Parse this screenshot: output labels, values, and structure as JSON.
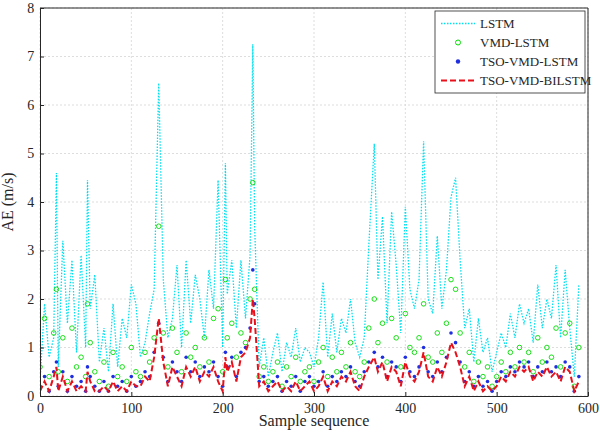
{
  "chart_data": {
    "type": "line",
    "x_label": "Sample sequence",
    "y_label": "AE (m/s)",
    "x": [
      0,
      5,
      10,
      15,
      18,
      20,
      25,
      30,
      35,
      40,
      45,
      50,
      52,
      55,
      60,
      65,
      70,
      75,
      80,
      85,
      90,
      95,
      100,
      105,
      110,
      115,
      120,
      125,
      130,
      135,
      140,
      145,
      150,
      155,
      160,
      165,
      170,
      175,
      180,
      185,
      190,
      195,
      200,
      203,
      205,
      210,
      215,
      220,
      225,
      230,
      233,
      235,
      240,
      245,
      250,
      255,
      260,
      265,
      270,
      275,
      280,
      285,
      290,
      295,
      300,
      305,
      310,
      315,
      320,
      325,
      330,
      335,
      340,
      345,
      350,
      355,
      360,
      366,
      370,
      375,
      380,
      385,
      390,
      395,
      400,
      405,
      410,
      415,
      420,
      425,
      430,
      435,
      440,
      445,
      450,
      455,
      460,
      465,
      470,
      475,
      480,
      485,
      490,
      495,
      500,
      505,
      510,
      515,
      520,
      525,
      530,
      535,
      540,
      545,
      550,
      555,
      560,
      565,
      570,
      575,
      580,
      585,
      590
    ],
    "xlim": [
      0,
      600
    ],
    "xticks": [
      0,
      100,
      200,
      300,
      400,
      500,
      600
    ],
    "ylim": [
      0,
      8
    ],
    "yticks": [
      0,
      1,
      2,
      3,
      4,
      5,
      6,
      7,
      8
    ],
    "grid": true,
    "legend": "upper right",
    "series": [
      {
        "name": "LSTM",
        "color": "#00e0f0",
        "type": "line",
        "line_style": "dotted",
        "values": [
          0.3,
          1.9,
          0.8,
          1.2,
          4.6,
          0.6,
          3.2,
          1.5,
          2.8,
          0.9,
          2.9,
          1.0,
          4.45,
          1.8,
          2.5,
          0.7,
          1.4,
          0.5,
          1.9,
          0.6,
          1.6,
          1.2,
          2.3,
          1.9,
          0.8,
          1.1,
          1.7,
          2.2,
          6.45,
          2.4,
          1.2,
          1.6,
          2.7,
          1.0,
          2.8,
          1.5,
          2.5,
          2.0,
          1.2,
          2.6,
          1.8,
          4.45,
          1.0,
          4.8,
          2.1,
          2.8,
          1.4,
          2.8,
          1.6,
          2.9,
          7.25,
          3.5,
          0.6,
          1.2,
          0.4,
          0.9,
          1.3,
          0.5,
          1.1,
          0.8,
          1.4,
          0.7,
          1.0,
          0.9,
          0.6,
          1.2,
          2.35,
          0.8,
          1.7,
          0.9,
          1.6,
          1.3,
          2.0,
          1.1,
          0.8,
          1.2,
          3.1,
          5.2,
          2.4,
          3.7,
          1.5,
          3.8,
          2.7,
          1.3,
          3.9,
          2.2,
          1.8,
          2.4,
          5.25,
          2.0,
          1.7,
          3.3,
          1.8,
          2.6,
          4.1,
          4.5,
          2.8,
          1.4,
          1.8,
          0.7,
          1.6,
          0.9,
          1.2,
          0.5,
          0.9,
          1.3,
          1.0,
          1.7,
          1.2,
          1.9,
          1.5,
          1.8,
          1.1,
          2.3,
          1.4,
          2.0,
          1.6,
          2.7,
          1.2,
          2.6,
          1.4,
          0.4,
          2.3
        ]
      },
      {
        "name": "VMD-LSTM",
        "color": "#00dd00",
        "type": "scatter",
        "marker": "circle",
        "values": [
          0.6,
          1.6,
          0.4,
          1.3,
          2.2,
          0.5,
          1.2,
          0.3,
          1.4,
          0.6,
          0.8,
          0.4,
          1.9,
          1.1,
          0.5,
          0.3,
          0.7,
          0.2,
          0.9,
          0.4,
          0.6,
          0.3,
          1.0,
          0.5,
          0.4,
          0.9,
          0.7,
          1.2,
          3.5,
          1.3,
          0.6,
          1.4,
          0.9,
          0.5,
          1.3,
          0.8,
          1.0,
          0.6,
          1.2,
          0.7,
          1.6,
          1.8,
          0.5,
          2.4,
          1.2,
          1.5,
          0.8,
          1.3,
          1.1,
          2.0,
          4.4,
          2.2,
          0.4,
          0.6,
          0.3,
          0.5,
          0.7,
          0.2,
          0.6,
          0.4,
          0.8,
          0.3,
          0.5,
          0.6,
          0.3,
          0.7,
          1.0,
          0.4,
          0.8,
          0.5,
          0.9,
          0.6,
          1.1,
          0.5,
          0.4,
          0.7,
          1.4,
          2.0,
          1.1,
          1.5,
          0.7,
          1.6,
          1.2,
          0.6,
          1.7,
          1.0,
          0.9,
          1.2,
          1.9,
          0.8,
          0.7,
          1.3,
          0.9,
          1.5,
          2.4,
          2.2,
          1.3,
          0.6,
          0.9,
          0.3,
          0.7,
          0.4,
          0.6,
          0.2,
          0.4,
          0.7,
          0.5,
          0.9,
          0.6,
          1.0,
          0.7,
          0.9,
          0.5,
          1.2,
          0.7,
          1.0,
          0.8,
          1.4,
          0.6,
          1.3,
          1.5,
          0.2,
          1.0
        ]
      },
      {
        "name": "TSO-VMD-LSTM",
        "color": "#1f2fe0",
        "type": "scatter",
        "marker": "point",
        "values": [
          0.2,
          0.4,
          0.1,
          0.5,
          0.7,
          0.2,
          0.5,
          0.1,
          0.4,
          0.2,
          0.3,
          0.1,
          0.6,
          0.4,
          0.2,
          0.1,
          0.3,
          0.1,
          0.4,
          0.2,
          0.3,
          0.1,
          0.4,
          0.2,
          0.3,
          0.5,
          0.4,
          0.9,
          1.5,
          0.8,
          0.3,
          0.7,
          0.5,
          0.3,
          0.8,
          0.5,
          0.7,
          0.4,
          0.6,
          0.5,
          0.7,
          0.4,
          0.2,
          0.9,
          0.6,
          0.8,
          0.4,
          0.9,
          1.0,
          1.4,
          2.6,
          1.9,
          0.3,
          0.4,
          0.2,
          0.3,
          0.4,
          0.1,
          0.3,
          0.2,
          0.4,
          0.1,
          0.3,
          0.4,
          0.2,
          0.3,
          0.5,
          0.2,
          0.4,
          0.3,
          0.5,
          0.4,
          0.6,
          0.3,
          0.2,
          0.5,
          0.7,
          0.9,
          0.6,
          0.8,
          0.4,
          0.7,
          0.6,
          0.3,
          0.8,
          0.5,
          0.4,
          0.6,
          1.0,
          0.5,
          0.4,
          0.7,
          0.5,
          0.8,
          1.3,
          1.1,
          0.7,
          0.3,
          0.5,
          0.2,
          0.4,
          0.2,
          0.3,
          0.1,
          0.3,
          0.5,
          0.4,
          0.6,
          0.5,
          0.7,
          0.6,
          0.7,
          0.4,
          0.6,
          0.5,
          0.7,
          0.5,
          0.6,
          0.4,
          0.7,
          0.6,
          0.1,
          0.4
        ]
      },
      {
        "name": "TSO-VMD-BILSTM",
        "color": "#e8101a",
        "type": "line",
        "line_style": "dashed",
        "values": [
          0.1,
          0.3,
          0.1,
          0.4,
          0.6,
          0.1,
          0.4,
          0.1,
          0.3,
          0.1,
          0.2,
          0.1,
          0.5,
          0.3,
          0.1,
          0.1,
          0.2,
          0.1,
          0.3,
          0.1,
          0.2,
          0.1,
          0.3,
          0.2,
          0.2,
          0.4,
          0.3,
          0.8,
          1.6,
          0.7,
          0.2,
          0.6,
          0.4,
          0.2,
          0.6,
          0.4,
          0.6,
          0.3,
          0.5,
          0.4,
          0.6,
          0.3,
          0.1,
          0.8,
          0.5,
          0.7,
          0.3,
          0.8,
          0.9,
          1.2,
          2.0,
          1.6,
          0.2,
          0.3,
          0.1,
          0.2,
          0.3,
          0.1,
          0.2,
          0.1,
          0.3,
          0.1,
          0.2,
          0.3,
          0.1,
          0.2,
          0.4,
          0.1,
          0.3,
          0.2,
          0.4,
          0.3,
          0.5,
          0.2,
          0.1,
          0.4,
          0.6,
          0.8,
          0.5,
          0.7,
          0.3,
          0.6,
          0.5,
          0.2,
          0.7,
          0.4,
          0.3,
          0.5,
          0.9,
          0.4,
          0.3,
          0.6,
          0.4,
          0.7,
          1.1,
          0.9,
          0.6,
          0.2,
          0.4,
          0.1,
          0.3,
          0.1,
          0.2,
          0.1,
          0.2,
          0.4,
          0.3,
          0.5,
          0.4,
          0.6,
          0.5,
          0.6,
          0.3,
          0.5,
          0.4,
          0.6,
          0.4,
          0.5,
          0.3,
          0.6,
          0.5,
          0.1,
          0.3
        ]
      }
    ]
  }
}
